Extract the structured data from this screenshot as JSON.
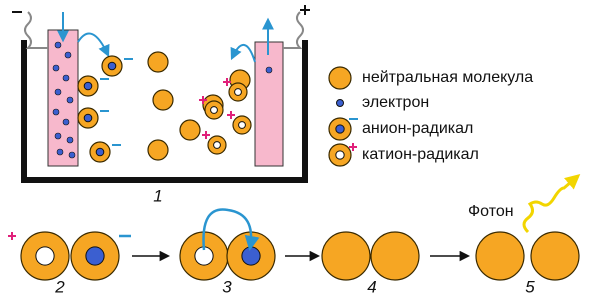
{
  "legend": [
    "нейтральная молекула",
    "электрон",
    "анион-радикал",
    "катион-радикал"
  ],
  "cell_label": "1",
  "steps": [
    "2",
    "3",
    "4",
    "5"
  ],
  "photon_label": "Фотон"
}
